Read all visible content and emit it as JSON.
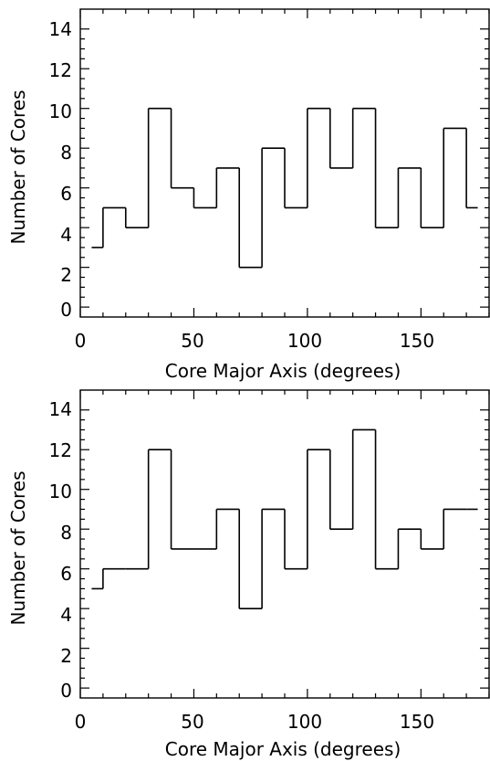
{
  "chart_data": [
    {
      "type": "histogram",
      "bin_edges": [
        5,
        10,
        20,
        30,
        40,
        50,
        60,
        70,
        80,
        90,
        100,
        110,
        120,
        130,
        140,
        150,
        160,
        170,
        175
      ],
      "values": [
        3,
        5,
        4,
        10,
        6,
        5,
        7,
        2,
        8,
        5,
        10,
        7,
        10,
        4,
        7,
        4,
        9,
        5
      ],
      "xlabel": "Core Major Axis (degrees)",
      "ylabel": "Number of Cores",
      "xlim": [
        0,
        180
      ],
      "ylim": [
        -0.5,
        15
      ],
      "xticks": [
        "0",
        "50",
        "100",
        "150"
      ],
      "yticks": [
        "0",
        "2",
        "4",
        "6",
        "8",
        "10",
        "12",
        "14"
      ]
    },
    {
      "type": "histogram",
      "bin_edges": [
        5,
        10,
        20,
        30,
        40,
        50,
        60,
        70,
        80,
        90,
        100,
        110,
        120,
        130,
        140,
        150,
        160,
        170,
        175
      ],
      "values": [
        5,
        6,
        6,
        12,
        7,
        7,
        9,
        4,
        9,
        6,
        12,
        8,
        13,
        6,
        8,
        7,
        9,
        9
      ],
      "xlabel": "Core Major Axis (degrees)",
      "ylabel": "Number of Cores",
      "xlim": [
        0,
        180
      ],
      "ylim": [
        -0.5,
        15
      ],
      "xticks": [
        "0",
        "50",
        "100",
        "150"
      ],
      "yticks": [
        "0",
        "2",
        "4",
        "6",
        "8",
        "10",
        "12",
        "14"
      ]
    }
  ]
}
